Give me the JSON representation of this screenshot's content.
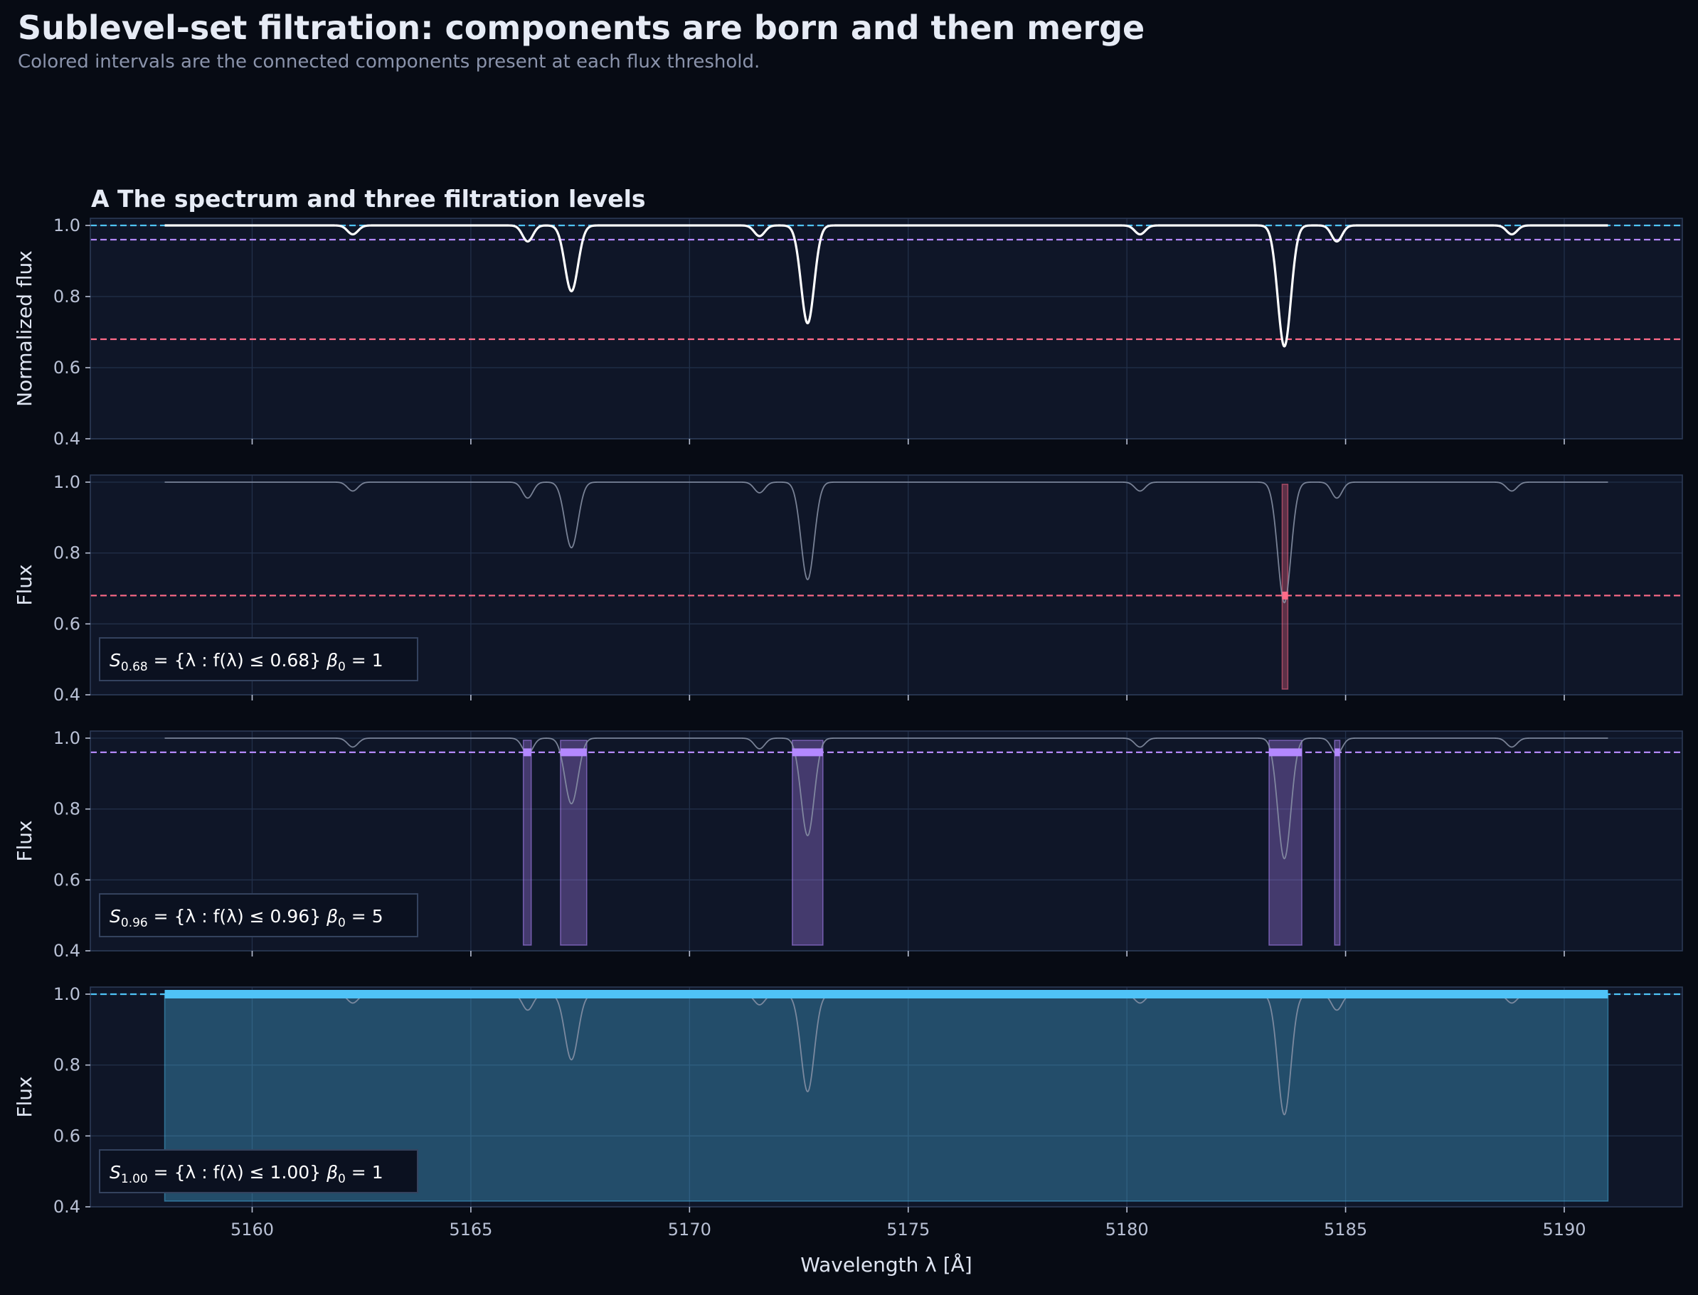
{
  "figure": {
    "title": "Sublevel-set filtration: components are born and then merge",
    "subtitle": "Colored intervals are the connected components present at each flux threshold."
  },
  "colors": {
    "background": "#070b14",
    "panel": "#0f1628",
    "spectrum": "#ffffff",
    "spectrum_dim": "#8b94a8",
    "level_068": "#ff6b88",
    "level_096": "#b388ff",
    "level_100": "#4fc3f7"
  },
  "chart_data": [
    {
      "type": "line",
      "panel_label": "A  The spectrum and three filtration levels",
      "xlabel": "",
      "ylabel": "Normalized flux",
      "xlim": [
        5156.3,
        5192.7
      ],
      "ylim": [
        0.4,
        1.02
      ],
      "xticks": [
        5160,
        5165,
        5170,
        5175,
        5180,
        5185,
        5190
      ],
      "yticks": [
        0.4,
        0.6,
        0.8,
        1.0
      ],
      "grid": true,
      "spectrum_range": [
        5158.0,
        5191.0
      ],
      "absorption_lines": [
        {
          "center": 5162.3,
          "depth": 0.025,
          "sigma": 0.12
        },
        {
          "center": 5166.3,
          "depth": 0.045,
          "sigma": 0.12
        },
        {
          "center": 5167.3,
          "depth": 0.185,
          "sigma": 0.15
        },
        {
          "center": 5171.6,
          "depth": 0.03,
          "sigma": 0.12
        },
        {
          "center": 5172.7,
          "depth": 0.275,
          "sigma": 0.15
        },
        {
          "center": 5180.3,
          "depth": 0.025,
          "sigma": 0.12
        },
        {
          "center": 5183.6,
          "depth": 0.34,
          "sigma": 0.15
        },
        {
          "center": 5184.8,
          "depth": 0.045,
          "sigma": 0.12
        },
        {
          "center": 5188.8,
          "depth": 0.025,
          "sigma": 0.12
        }
      ],
      "thresholds": [
        1.0,
        0.96,
        0.68
      ]
    },
    {
      "type": "line",
      "panel_label": "",
      "ylabel": "Flux",
      "xlim": [
        5156.3,
        5192.7
      ],
      "ylim": [
        0.4,
        1.02
      ],
      "yticks": [
        0.4,
        0.6,
        0.8,
        1.0
      ],
      "threshold": 0.68,
      "components": [
        [
          5183.55,
          5183.68
        ]
      ],
      "annotation": "S_{0.68} = {λ : f(λ) ≤ 0.68}   β₀ = 1",
      "annotation_parts": {
        "S": "S",
        "sub": "0.68",
        "set": " = {λ : f(λ) ≤ 0.68}",
        "beta": "β",
        "beta_sub": "0",
        "beta_val": " = 1"
      },
      "betti0": 1
    },
    {
      "type": "line",
      "panel_label": "",
      "ylabel": "Flux",
      "xlim": [
        5156.3,
        5192.7
      ],
      "ylim": [
        0.4,
        1.02
      ],
      "yticks": [
        0.4,
        0.6,
        0.8,
        1.0
      ],
      "threshold": 0.96,
      "components": [
        [
          5166.2,
          5166.38
        ],
        [
          5167.05,
          5167.65
        ],
        [
          5172.35,
          5173.05
        ],
        [
          5183.25,
          5184.0
        ],
        [
          5184.75,
          5184.87
        ]
      ],
      "annotation": "S_{0.96} = {λ : f(λ) ≤ 0.96}   β₀ = 5",
      "annotation_parts": {
        "S": "S",
        "sub": "0.96",
        "set": " = {λ : f(λ) ≤ 0.96}",
        "beta": "β",
        "beta_sub": "0",
        "beta_val": " = 5"
      },
      "betti0": 5
    },
    {
      "type": "line",
      "panel_label": "",
      "xlabel": "Wavelength λ [Å]",
      "ylabel": "Flux",
      "xlim": [
        5156.3,
        5192.7
      ],
      "ylim": [
        0.4,
        1.02
      ],
      "yticks": [
        0.4,
        0.6,
        0.8,
        1.0
      ],
      "threshold": 1.0,
      "components": [
        [
          5158.0,
          5191.0
        ]
      ],
      "annotation": "S_{1.00} = {λ : f(λ) ≤ 1.00}   β₀ = 1",
      "annotation_parts": {
        "S": "S",
        "sub": "1.00",
        "set": " = {λ : f(λ) ≤ 1.00}",
        "beta": "β",
        "beta_sub": "0",
        "beta_val": " = 1"
      },
      "betti0": 1
    }
  ]
}
